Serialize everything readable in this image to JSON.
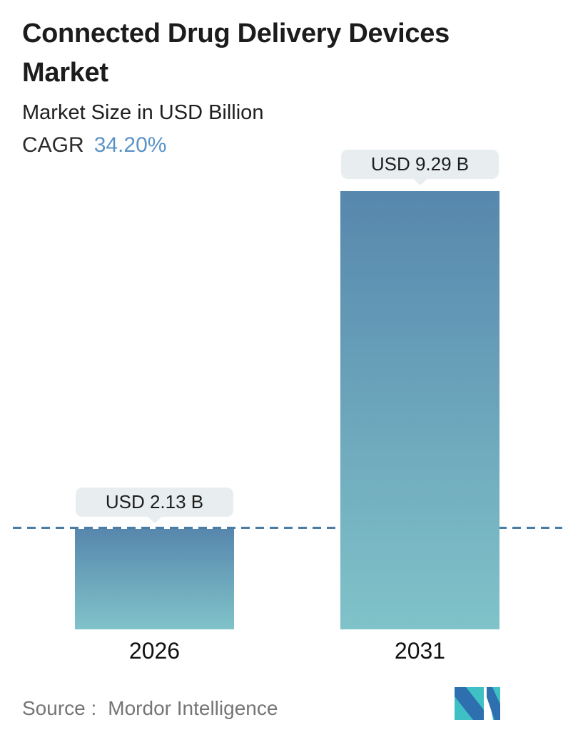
{
  "header": {
    "title": "Connected Drug Delivery Devices Market",
    "subtitle": "Market Size in USD Billion",
    "cagr_label": "CAGR",
    "cagr_value": "34.20%"
  },
  "chart_data": {
    "type": "bar",
    "categories": [
      "2026",
      "2031"
    ],
    "values": [
      2.13,
      9.29
    ],
    "value_labels": [
      "USD 2.13 B",
      "USD 9.29 B"
    ],
    "unit": "USD Billion",
    "title": "Connected Drug Delivery Devices Market",
    "subtitle": "Market Size in USD Billion",
    "cagr": "34.20%",
    "ylim": [
      0,
      9.29
    ],
    "grid": false,
    "legend": false,
    "reference_line_value": 2.13,
    "reference_line_style": "dashed",
    "dashed_line_color": "#4a7da5",
    "bar_gradient_top": "#5787ad",
    "bar_gradient_bottom": "#80c3c9"
  },
  "footer": {
    "source_label": "Source :",
    "source_value": "Mordor Intelligence",
    "logo_name": "mordor-intelligence-logo"
  },
  "colors": {
    "background": "#ffffff",
    "title_text": "#1c1c1c",
    "cagr_accent": "#5b93c5",
    "callout_bg": "#e8eef0",
    "callout_text": "#1d1d1d",
    "axis_label_text": "#121212",
    "source_text": "#757575",
    "logo_teal": "#3fc0c5",
    "logo_blue": "#2e6fb0"
  }
}
